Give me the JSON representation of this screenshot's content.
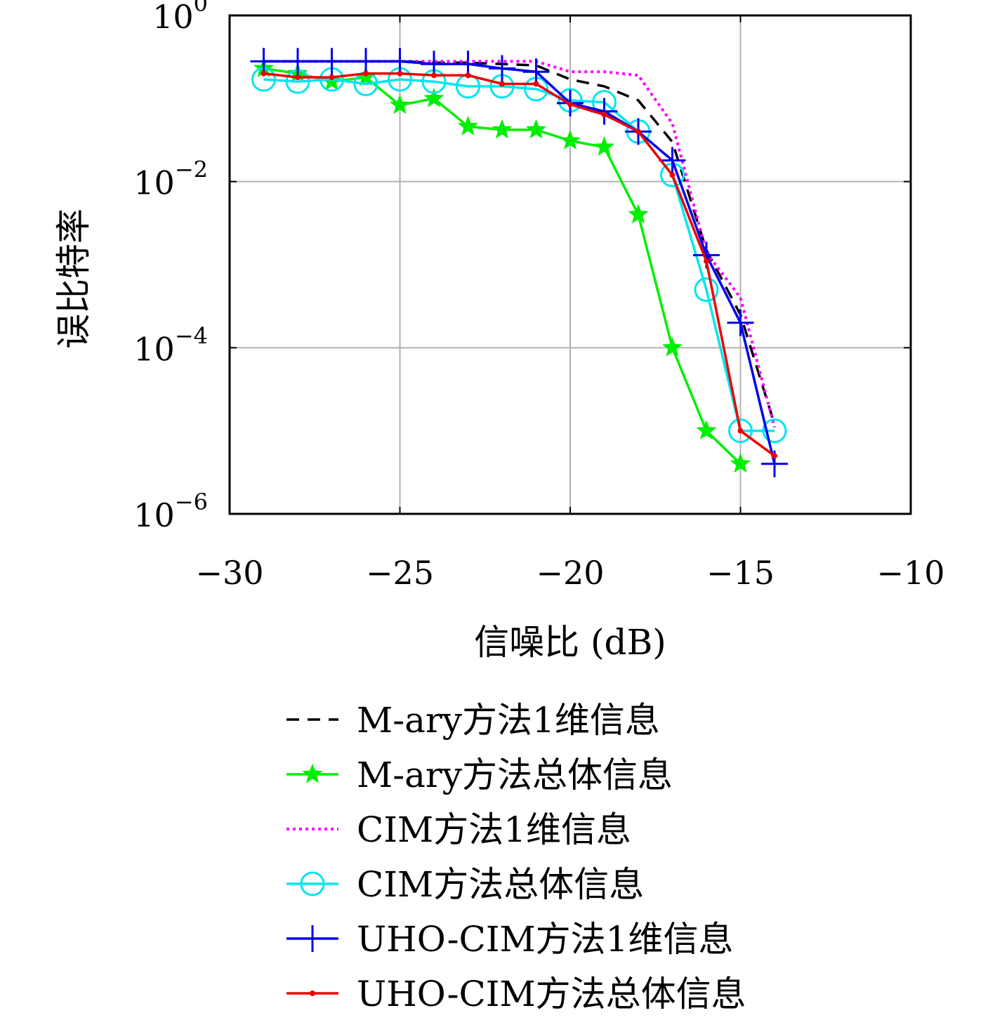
{
  "chart_data": {
    "type": "line",
    "title": "",
    "xlabel": "信噪比 (dB)",
    "ylabel": "误比特率",
    "xlim": [
      -30,
      -10
    ],
    "ylim": [
      1e-06,
      1
    ],
    "yscale": "log",
    "grid": true,
    "legend_position": "below",
    "x_ticks": [
      {
        "value": -30,
        "label": "−30"
      },
      {
        "value": -25,
        "label": "−25"
      },
      {
        "value": -20,
        "label": "−20"
      },
      {
        "value": -15,
        "label": "−15"
      },
      {
        "value": -10,
        "label": "−10"
      }
    ],
    "y_ticks": [
      {
        "value": 1,
        "base": "10",
        "exp": "0"
      },
      {
        "value": 0.01,
        "base": "10",
        "exp": "−2"
      },
      {
        "value": 0.0001,
        "base": "10",
        "exp": "−4"
      },
      {
        "value": 1e-06,
        "base": "10",
        "exp": "−6"
      }
    ],
    "series": [
      {
        "name": "M-ary方法1维信息",
        "color": "#000000",
        "style": "dashed",
        "marker": "none",
        "x": [
          -29,
          -28,
          -27,
          -26,
          -25,
          -24,
          -23,
          -22,
          -21,
          -20,
          -19,
          -18,
          -17,
          -16,
          -15,
          -14
        ],
        "y": [
          0.28,
          0.28,
          0.28,
          0.28,
          0.28,
          0.27,
          0.27,
          0.26,
          0.25,
          0.17,
          0.14,
          0.095,
          0.03,
          0.0015,
          0.00025,
          1.2e-05
        ]
      },
      {
        "name": "M-ary方法总体信息",
        "color": "#00ee00",
        "style": "solid",
        "marker": "star",
        "x": [
          -29,
          -28,
          -27,
          -26,
          -25,
          -24,
          -23,
          -22,
          -21,
          -20,
          -19,
          -18,
          -17,
          -16,
          -15
        ],
        "y": [
          0.23,
          0.2,
          0.16,
          0.18,
          0.083,
          0.1,
          0.046,
          0.042,
          0.042,
          0.031,
          0.026,
          0.004,
          0.0001,
          1e-05,
          4e-06
        ]
      },
      {
        "name": "CIM方法1维信息",
        "color": "#ff00ff",
        "style": "dotted",
        "marker": "none",
        "x": [
          -29,
          -28,
          -27,
          -26,
          -25,
          -24,
          -23,
          -22,
          -21,
          -20,
          -19,
          -18,
          -17,
          -16,
          -15,
          -14
        ],
        "y": [
          0.28,
          0.28,
          0.28,
          0.28,
          0.28,
          0.28,
          0.28,
          0.28,
          0.28,
          0.21,
          0.21,
          0.19,
          0.05,
          0.0014,
          0.0004,
          1.1e-05
        ]
      },
      {
        "name": "CIM方法总体信息",
        "color": "#00e5ee",
        "style": "solid",
        "marker": "circle",
        "x": [
          -29,
          -28,
          -27,
          -26,
          -25,
          -24,
          -23,
          -22,
          -21,
          -20,
          -19,
          -18,
          -17,
          -16,
          -15,
          -14
        ],
        "y": [
          0.17,
          0.16,
          0.17,
          0.15,
          0.17,
          0.16,
          0.14,
          0.14,
          0.13,
          0.095,
          0.09,
          0.04,
          0.012,
          0.0005,
          1e-05,
          1e-05
        ]
      },
      {
        "name": "UHO-CIM方法1维信息",
        "color": "#0000ee",
        "style": "solid",
        "marker": "plus",
        "x": [
          -29,
          -28,
          -27,
          -26,
          -25,
          -24,
          -23,
          -22,
          -21,
          -20,
          -19,
          -18,
          -17,
          -16,
          -15,
          -14
        ],
        "y": [
          0.28,
          0.28,
          0.28,
          0.28,
          0.28,
          0.26,
          0.26,
          0.23,
          0.21,
          0.088,
          0.07,
          0.04,
          0.018,
          0.0013,
          0.0002,
          4e-06
        ]
      },
      {
        "name": "UHO-CIM方法总体信息",
        "color": "#ee0000",
        "style": "solid",
        "marker": "dot",
        "x": [
          -29,
          -28,
          -27,
          -26,
          -25,
          -24,
          -23,
          -22,
          -21,
          -20,
          -19,
          -18,
          -17,
          -16,
          -15,
          -14
        ],
        "y": [
          0.2,
          0.18,
          0.18,
          0.2,
          0.2,
          0.19,
          0.19,
          0.15,
          0.15,
          0.085,
          0.064,
          0.04,
          0.012,
          0.0011,
          1e-05,
          5e-06
        ]
      }
    ]
  }
}
